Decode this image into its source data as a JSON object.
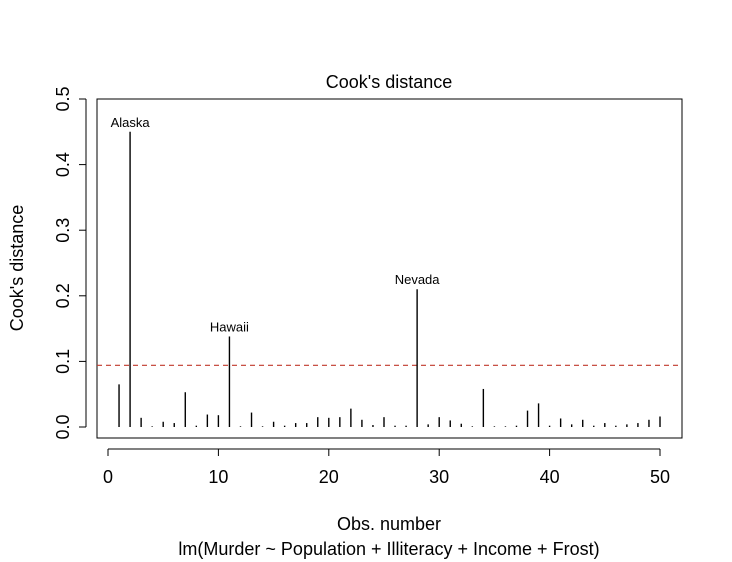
{
  "chart_data": {
    "type": "bar",
    "title": "Cook's distance",
    "xlabel": "Obs. number",
    "subtitle": "lm(Murder ~ Population + Illiteracy + Income + Frost)",
    "ylabel": "Cook's distance",
    "xlim": [
      0,
      52
    ],
    "ylim": [
      0,
      0.5
    ],
    "x_ticks": [
      0,
      10,
      20,
      30,
      40,
      50
    ],
    "x_tick_labels": [
      "0",
      "10",
      "20",
      "30",
      "40",
      "50"
    ],
    "y_ticks": [
      0,
      0.1,
      0.2,
      0.3,
      0.4,
      0.5
    ],
    "y_tick_labels": [
      "0.0",
      "0.1",
      "0.2",
      "0.3",
      "0.4",
      "0.5"
    ],
    "x": [
      1,
      2,
      3,
      4,
      5,
      6,
      7,
      8,
      9,
      10,
      11,
      12,
      13,
      14,
      15,
      16,
      17,
      18,
      19,
      20,
      21,
      22,
      23,
      24,
      25,
      26,
      27,
      28,
      29,
      30,
      31,
      32,
      33,
      34,
      35,
      36,
      37,
      38,
      39,
      40,
      41,
      42,
      43,
      44,
      45,
      46,
      47,
      48,
      49,
      50
    ],
    "values": [
      0.065,
      0.45,
      0.014,
      0.001,
      0.008,
      0.006,
      0.053,
      0.002,
      0.019,
      0.018,
      0.138,
      0.001,
      0.022,
      0.001,
      0.008,
      0.002,
      0.006,
      0.006,
      0.015,
      0.014,
      0.015,
      0.028,
      0.011,
      0.003,
      0.015,
      0.002,
      0.002,
      0.21,
      0.004,
      0.015,
      0.01,
      0.005,
      0.001,
      0.058,
      0.001,
      0.001,
      0.002,
      0.025,
      0.036,
      0.002,
      0.013,
      0.004,
      0.011,
      0.002,
      0.006,
      0.002,
      0.004,
      0.006,
      0.011,
      0.016
    ],
    "reference_line": {
      "value": 0.094,
      "style": "dashed",
      "color": "#c0392b"
    },
    "annotations": [
      {
        "x": 2,
        "y": 0.45,
        "label": "Alaska"
      },
      {
        "x": 11,
        "y": 0.138,
        "label": "Hawaii"
      },
      {
        "x": 28,
        "y": 0.21,
        "label": "Nevada"
      }
    ],
    "grid": false,
    "legend": "none"
  }
}
